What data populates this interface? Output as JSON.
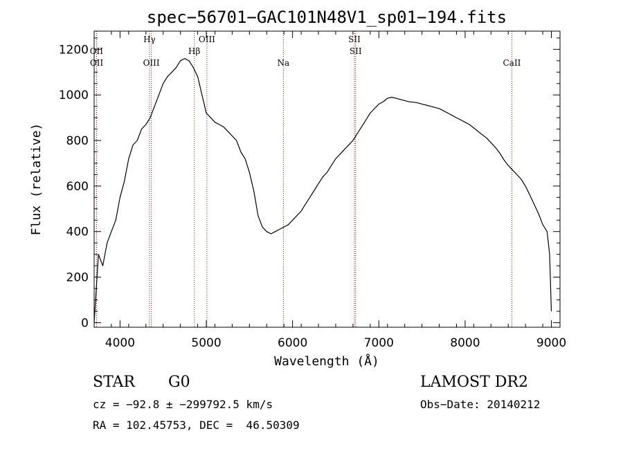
{
  "chart_data": {
    "type": "line",
    "title": "spec−56701−GAC101N48V1_sp01−194.fits",
    "xlabel": "Wavelength (Å)",
    "ylabel": "Flux (relative)",
    "xlim": [
      3700,
      9100
    ],
    "ylim": [
      -20,
      1280
    ],
    "xticks": [
      4000,
      5000,
      6000,
      7000,
      8000,
      9000
    ],
    "yticks": [
      0,
      200,
      400,
      600,
      800,
      1000,
      1200
    ],
    "series": [
      {
        "x": [
          3700,
          3750,
          3800,
          3850,
          3900,
          3950,
          4000,
          4050,
          4100,
          4150,
          4200,
          4250,
          4300,
          4350,
          4400,
          4450,
          4500,
          4550,
          4600,
          4650,
          4700,
          4750,
          4800,
          4850,
          4900,
          4950,
          5000,
          5050,
          5100,
          5150,
          5200,
          5250,
          5300,
          5350,
          5400,
          5450,
          5500,
          5550,
          5600,
          5650,
          5700,
          5750,
          5800,
          5850,
          5900,
          5950,
          6000,
          6050,
          6100,
          6150,
          6200,
          6250,
          6300,
          6350,
          6400,
          6450,
          6500,
          6550,
          6600,
          6650,
          6700,
          6750,
          6800,
          6850,
          6900,
          6950,
          7000,
          7050,
          7100,
          7150,
          7200,
          7250,
          7300,
          7350,
          7400,
          7450,
          7500,
          7550,
          7600,
          7650,
          7700,
          7750,
          7800,
          7850,
          7900,
          7950,
          8000,
          8050,
          8100,
          8150,
          8200,
          8250,
          8300,
          8350,
          8400,
          8450,
          8500,
          8550,
          8600,
          8650,
          8700,
          8750,
          8800,
          8850,
          8900,
          8950,
          8980,
          9000
        ],
        "y": [
          0,
          300,
          250,
          350,
          400,
          450,
          550,
          620,
          720,
          780,
          800,
          850,
          870,
          900,
          950,
          1000,
          1050,
          1080,
          1100,
          1120,
          1150,
          1160,
          1150,
          1120,
          1080,
          1000,
          920,
          900,
          880,
          870,
          860,
          840,
          820,
          800,
          750,
          720,
          660,
          580,
          470,
          420,
          400,
          390,
          400,
          410,
          420,
          430,
          450,
          470,
          490,
          520,
          550,
          580,
          610,
          640,
          660,
          690,
          720,
          740,
          760,
          780,
          800,
          830,
          860,
          890,
          920,
          940,
          960,
          970,
          985,
          990,
          985,
          980,
          975,
          970,
          968,
          965,
          960,
          955,
          950,
          945,
          940,
          930,
          920,
          910,
          900,
          890,
          880,
          870,
          855,
          840,
          825,
          810,
          790,
          770,
          745,
          715,
          690,
          670,
          650,
          630,
          600,
          560,
          520,
          480,
          430,
          400,
          300,
          50
        ]
      }
    ],
    "spectral_lines": [
      {
        "name": "OII",
        "wavelength": 3727,
        "row": 1
      },
      {
        "name": "OII",
        "wavelength": 3729,
        "row": 2
      },
      {
        "name": "Hγ",
        "wavelength": 4341,
        "row": 0
      },
      {
        "name": "OIII",
        "wavelength": 4363,
        "row": 2
      },
      {
        "name": "Hβ",
        "wavelength": 4861,
        "row": 1
      },
      {
        "name": "OIII",
        "wavelength": 5007,
        "row": 0
      },
      {
        "name": "Na",
        "wavelength": 5893,
        "row": 2
      },
      {
        "name": "SII",
        "wavelength": 6717,
        "row": 0
      },
      {
        "name": "SII",
        "wavelength": 6731,
        "row": 1
      },
      {
        "name": "CaII",
        "wavelength": 8542,
        "row": 2
      }
    ]
  },
  "info": {
    "object_class": "STAR",
    "subclass": "G0",
    "survey": "LAMOST DR2",
    "velocity": "cz = −92.8 ± −299792.5 km/s",
    "obs_date": "Obs−Date: 20140212",
    "coords": "RA = 102.45753, DEC =  46.50309"
  }
}
